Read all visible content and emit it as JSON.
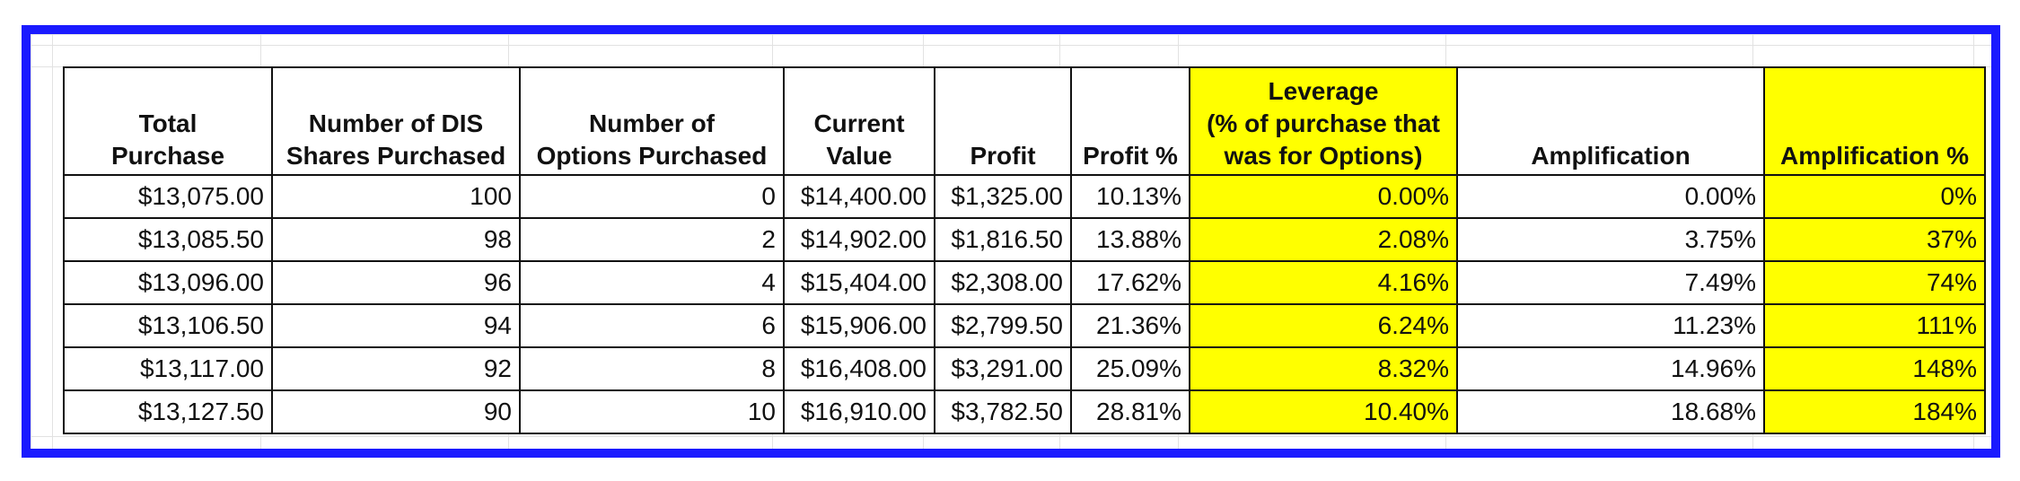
{
  "table": {
    "headers": [
      [
        "Total",
        "Purchase"
      ],
      [
        "Number of DIS",
        "Shares Purchased"
      ],
      [
        "Number of",
        "Options Purchased"
      ],
      [
        "Current",
        "Value"
      ],
      [
        "Profit"
      ],
      [
        "Profit %"
      ],
      [
        "Leverage",
        "(% of purchase that",
        "was for Options)"
      ],
      [
        "Amplification"
      ],
      [
        "Amplification %"
      ]
    ],
    "rows": [
      [
        "$13,075.00",
        "100",
        "0",
        "$14,400.00",
        "$1,325.00",
        "10.13%",
        "0.00%",
        "0.00%",
        "0%"
      ],
      [
        "$13,085.50",
        "98",
        "2",
        "$14,902.00",
        "$1,816.50",
        "13.88%",
        "2.08%",
        "3.75%",
        "37%"
      ],
      [
        "$13,096.00",
        "96",
        "4",
        "$15,404.00",
        "$2,308.00",
        "17.62%",
        "4.16%",
        "7.49%",
        "74%"
      ],
      [
        "$13,106.50",
        "94",
        "6",
        "$15,906.00",
        "$2,799.50",
        "21.36%",
        "6.24%",
        "11.23%",
        "111%"
      ],
      [
        "$13,117.00",
        "92",
        "8",
        "$16,408.00",
        "$3,291.00",
        "25.09%",
        "8.32%",
        "14.96%",
        "148%"
      ],
      [
        "$13,127.50",
        "90",
        "10",
        "$16,910.00",
        "$3,782.50",
        "28.81%",
        "10.40%",
        "18.68%",
        "184%"
      ]
    ],
    "highlight_columns": [
      6,
      8
    ],
    "highlight_color": "#ffff00",
    "frame_color": "#1a1aff"
  }
}
